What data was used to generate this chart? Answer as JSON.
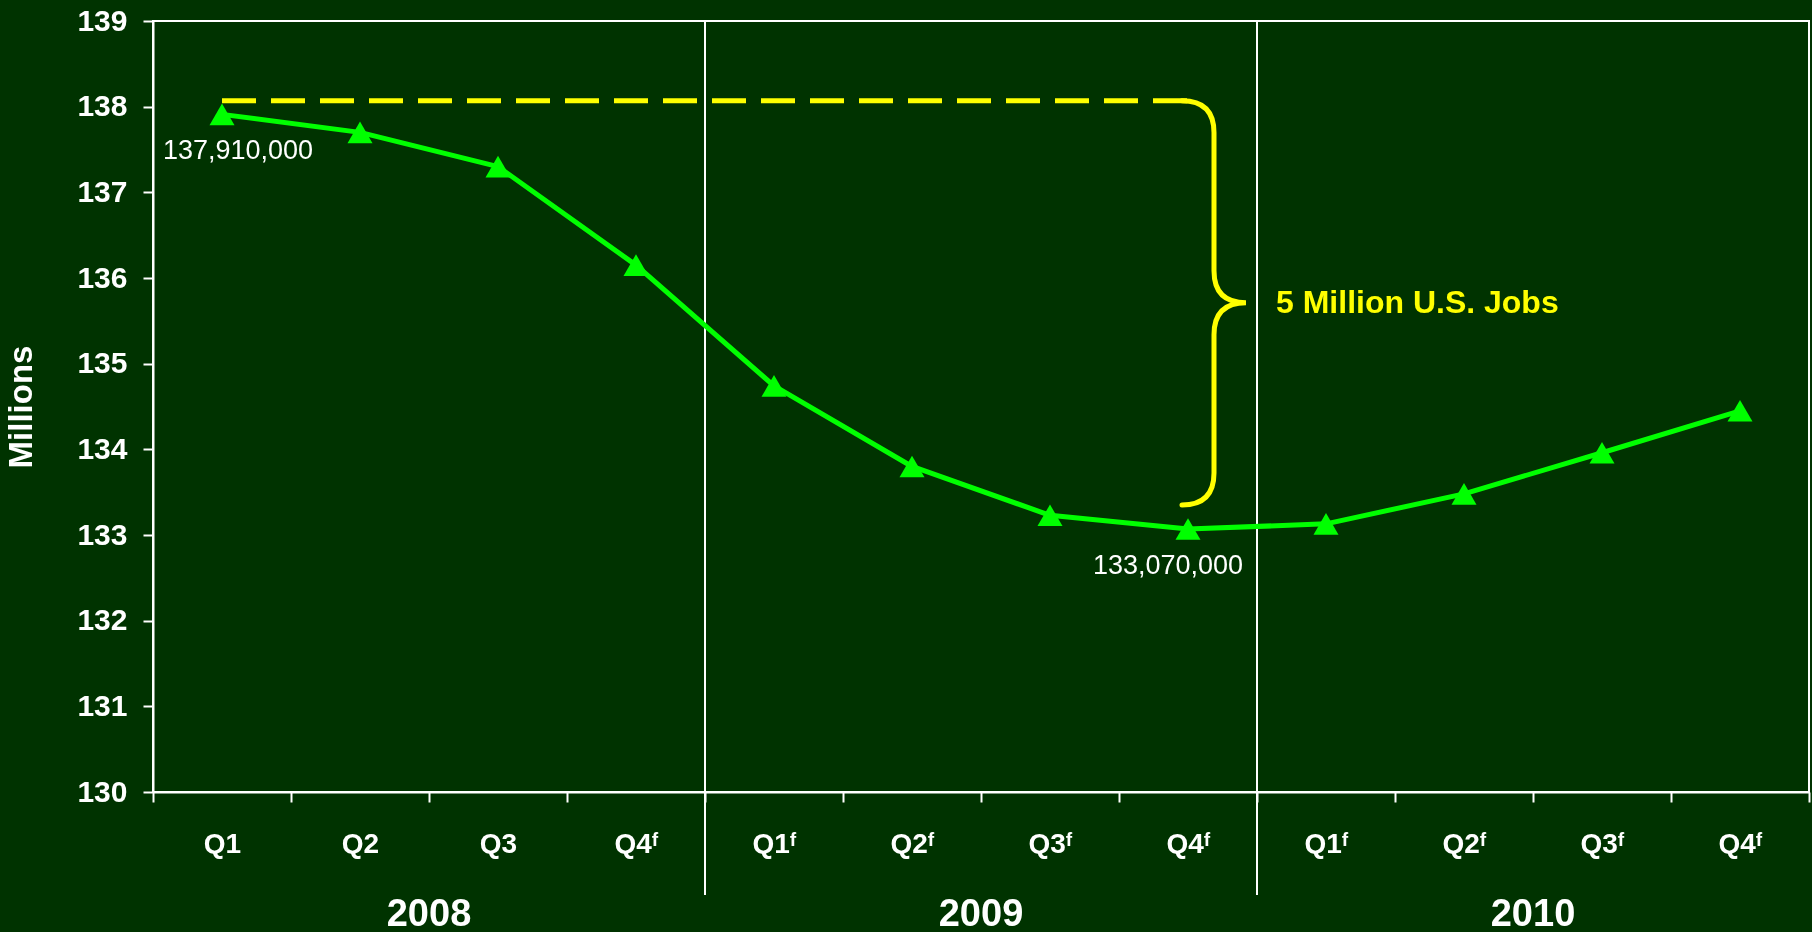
{
  "chart_data": {
    "type": "line",
    "ylabel": "Millions",
    "categories": [
      "Q1",
      "Q2",
      "Q3",
      "Q4ᶠ",
      "Q1ᶠ",
      "Q2ᶠ",
      "Q3ᶠ",
      "Q4ᶠ",
      "Q1ᶠ",
      "Q2ᶠ",
      "Q3ᶠ",
      "Q4ᶠ"
    ],
    "series": [
      {
        "color": "#00ff00",
        "values": [
          137.91,
          137.7,
          137.3,
          136.15,
          134.74,
          133.8,
          133.23,
          133.07,
          133.13,
          133.48,
          133.96,
          134.45
        ]
      },
      {
        "color": "#ffff00",
        "line_style": "dashed",
        "marker": "none",
        "values": [
          138.07,
          138.07,
          138.07,
          138.07,
          138.07,
          138.07,
          138.07,
          138.07,
          null,
          null,
          null,
          null
        ]
      }
    ],
    "marker": "triangle",
    "ylim": [
      130,
      139
    ],
    "yticks": [
      130,
      131,
      132,
      133,
      134,
      135,
      136,
      137,
      138,
      139
    ],
    "annotations": [
      "5 Million U.S. Jobs",
      "2008",
      "2009",
      "2010",
      {
        "text": "137,910,000",
        "x": "Q1",
        "y": 137.91
      },
      {
        "text": "133,070,000",
        "y": 133.07
      }
    ]
  }
}
